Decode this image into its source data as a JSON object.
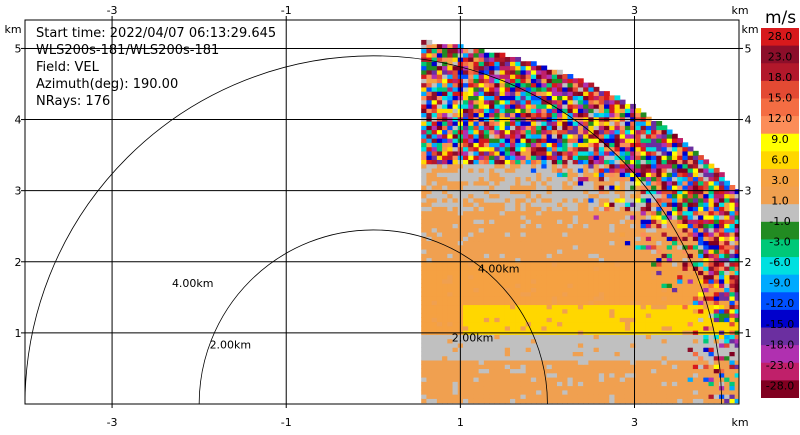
{
  "info": {
    "start_time": "Start time: 2022/04/07 06:13:29.645",
    "site": "WLS200s-181/WLS200s-181",
    "field": "Field: VEL",
    "azimuth": "Azimuth(deg): 190.00",
    "nrays": "NRays: 176"
  },
  "chart_data": {
    "type": "heatmap",
    "title": "",
    "xlabel": "km",
    "ylabel": "km",
    "xlim": [
      -4.0,
      4.2
    ],
    "ylim": [
      0,
      5.4
    ],
    "x_ticks": [
      -3,
      -1,
      1,
      3
    ],
    "y_ticks": [
      1,
      2,
      3,
      4,
      5
    ],
    "x_tick_labels": [
      "-3",
      "-1",
      "1",
      "3"
    ],
    "y_tick_labels": [
      "1",
      "2",
      "3",
      "4",
      "5"
    ],
    "axis_unit": "km",
    "grid": true,
    "range_rings": [
      {
        "radius_km": 2.0,
        "label": "2.00km"
      },
      {
        "radius_km": 4.0,
        "label": "4.00km"
      }
    ],
    "data_sector": {
      "x_start_km": 0.55,
      "max_radius_km": 5.1
    },
    "velocity_bands": [
      {
        "y_km": 0.4,
        "value_ms": 1.0
      },
      {
        "y_km": 0.75,
        "value_ms": -1.0
      },
      {
        "y_km": 1.15,
        "value_ms": 6.0
      },
      {
        "y_km": 1.6,
        "value_ms": 3.0
      },
      {
        "y_km": 2.3,
        "value_ms": 1.5
      },
      {
        "y_km": 3.0,
        "value_ms": 1.0
      }
    ],
    "colorbar": {
      "unit": "m/s",
      "labels": [
        "28.0",
        "23.0",
        "18.0",
        "15.0",
        "12.0",
        "9.0",
        "6.0",
        "3.0",
        "1.0",
        "-1.0",
        "-3.0",
        "-6.0",
        "-9.0",
        "-12.0",
        "-15.0",
        "-18.0",
        "-23.0",
        "-28.0"
      ],
      "colors": [
        "#d7191c",
        "#8c0e2a",
        "#b2182b",
        "#e34a33",
        "#f46d43",
        "#fc8d59",
        "#ffff00",
        "#ffd700",
        "#f5a142",
        "#f0a050",
        "#c0c0c0",
        "#228b22",
        "#00c878",
        "#00e0e0",
        "#00aaff",
        "#0050ff",
        "#0000cc",
        "#6b2fa0",
        "#b030b0",
        "#c0206a",
        "#800020"
      ]
    }
  }
}
